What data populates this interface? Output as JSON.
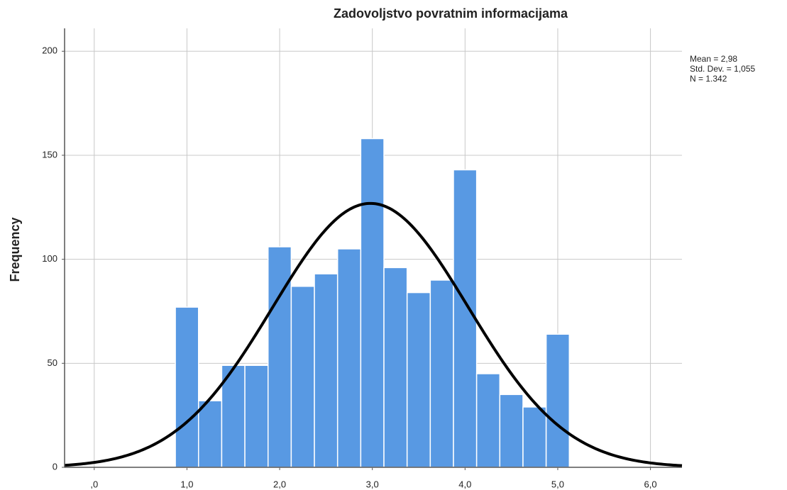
{
  "chart_data": {
    "type": "histogram",
    "title": "Zadovoljstvo povratnim informacijama",
    "ylabel": "Frequency",
    "bins": [
      0.875,
      1.125,
      1.375,
      1.625,
      1.875,
      2.125,
      2.375,
      2.625,
      2.875,
      3.125,
      3.375,
      3.625,
      3.875,
      4.125,
      4.375,
      4.625,
      4.875,
      5.125
    ],
    "counts": [
      77,
      32,
      49,
      49,
      106,
      87,
      93,
      105,
      158,
      96,
      84,
      90,
      143,
      45,
      35,
      29,
      64
    ],
    "color": "#5899e3",
    "normal_curve": {
      "mean": 2.98,
      "std": 1.055,
      "n": 1342,
      "color": "#000000"
    },
    "stats_labels": [
      "Mean = 2,98",
      "Std. Dev. = 1,055",
      "N = 1.342"
    ],
    "xlim": [
      -0.32,
      6.34
    ],
    "xticks": [
      {
        "value": 0,
        "label": ",0"
      },
      {
        "value": 1,
        "label": "1,0"
      },
      {
        "value": 2,
        "label": "2,0"
      },
      {
        "value": 3,
        "label": "3,0"
      },
      {
        "value": 4,
        "label": "4,0"
      },
      {
        "value": 5,
        "label": "5,0"
      },
      {
        "value": 6,
        "label": "6,0"
      }
    ],
    "ylim": [
      0,
      211
    ],
    "yticks": [
      0,
      50,
      100,
      150,
      200
    ],
    "grid": true
  }
}
